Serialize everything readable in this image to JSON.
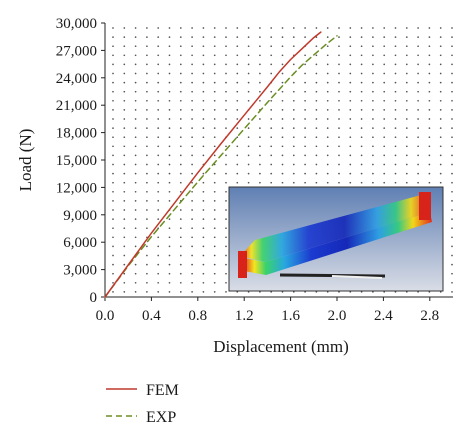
{
  "chart_data": {
    "type": "line",
    "title": "",
    "xlabel": "Displacement (mm)",
    "ylabel": "Load (N)",
    "xlim": [
      0,
      3.0
    ],
    "ylim": [
      0,
      30000
    ],
    "x_ticks": [
      "0.0",
      "0.4",
      "0.8",
      "1.2",
      "1.6",
      "2.0",
      "2.4",
      "2.8"
    ],
    "y_ticks": [
      "0",
      "3,000",
      "6,000",
      "9,000",
      "12,000",
      "15,000",
      "18,000",
      "21,000",
      "24,000",
      "27,000",
      "30,000"
    ],
    "grid": "dotted",
    "legend_position": "below",
    "series": [
      {
        "name": "FEM",
        "color": "#c0392b",
        "dash": "solid",
        "points": [
          [
            0,
            0
          ],
          [
            0.2,
            3500
          ],
          [
            0.4,
            7000
          ],
          [
            0.6,
            10300
          ],
          [
            0.8,
            13600
          ],
          [
            1.0,
            16800
          ],
          [
            1.2,
            19900
          ],
          [
            1.4,
            23000
          ],
          [
            1.5,
            24600
          ],
          [
            1.6,
            26000
          ],
          [
            1.7,
            27200
          ],
          [
            1.8,
            28400
          ],
          [
            1.86,
            29000
          ]
        ]
      },
      {
        "name": "EXP",
        "color": "#6b8e23",
        "dash": "dashed",
        "points": [
          [
            0,
            0
          ],
          [
            0.2,
            3400
          ],
          [
            0.4,
            6600
          ],
          [
            0.6,
            9600
          ],
          [
            0.8,
            12600
          ],
          [
            1.0,
            15500
          ],
          [
            1.2,
            18400
          ],
          [
            1.4,
            21300
          ],
          [
            1.6,
            24100
          ],
          [
            1.7,
            25400
          ],
          [
            1.8,
            26500
          ],
          [
            1.9,
            27600
          ],
          [
            2.0,
            28600
          ]
        ]
      }
    ],
    "inset": {
      "type": "fem-contour-image",
      "description_icon": "deformed-beam-contour"
    }
  }
}
